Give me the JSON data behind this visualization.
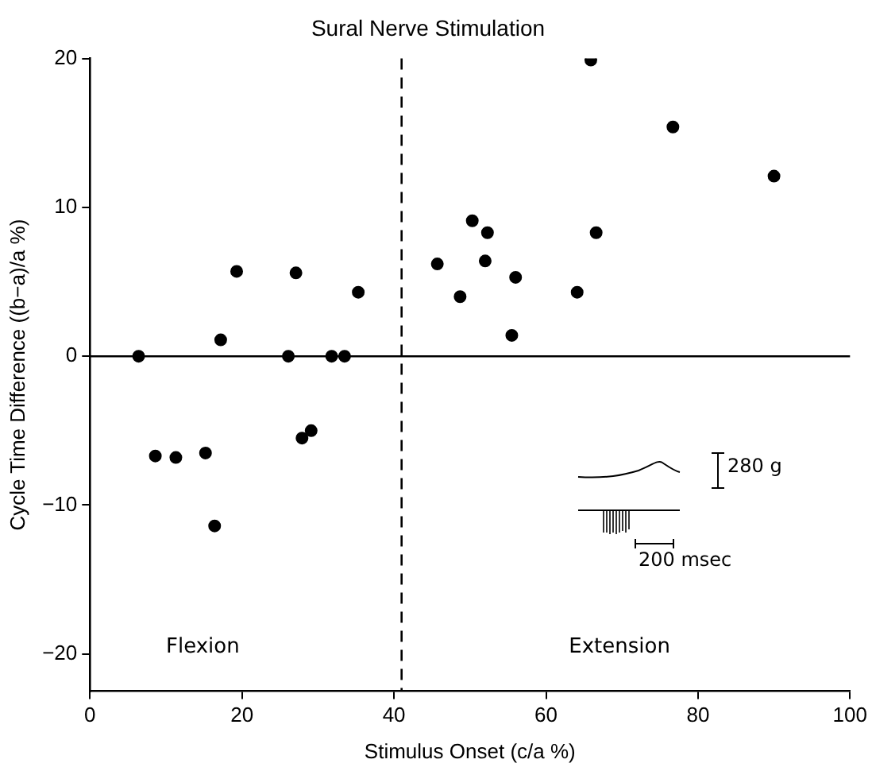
{
  "chart_data": {
    "type": "scatter",
    "title": "Sural Nerve Stimulation",
    "xlabel": "Stimulus Onset (c/a %)",
    "ylabel": "Cycle Time Difference ((b−a)/a %)",
    "annotations": [
      "Flexion",
      "Extension",
      "280 g",
      "200 msec"
    ],
    "x": [
      6.4,
      8.6,
      11.3,
      15.2,
      16.4,
      17.2,
      19.3,
      26.1,
      27.1,
      27.9,
      29.1,
      31.8,
      33.5,
      35.3,
      45.7,
      48.7,
      50.3,
      52.0,
      52.3,
      55.5,
      56.0,
      64.1,
      65.9,
      66.6,
      76.7,
      90.0
    ],
    "values": [
      0,
      -6.7,
      -6.8,
      -6.5,
      -11.4,
      1.1,
      5.7,
      0,
      5.6,
      -5.5,
      -5.0,
      0,
      0,
      4.3,
      6.2,
      4.0,
      9.1,
      6.4,
      8.3,
      1.4,
      5.3,
      4.3,
      19.9,
      8.3,
      15.4,
      12.1
    ],
    "color": "#000000",
    "marker": "circle",
    "grid": false,
    "legend": false,
    "xlim": [
      0,
      100
    ],
    "xticks": [
      0,
      20,
      40,
      60,
      80,
      100
    ],
    "ylim": [
      -22.5,
      20
    ],
    "yticks": [
      {
        "value": -20,
        "label": "−20"
      },
      {
        "value": -10,
        "label": "−10"
      },
      0,
      10,
      20
    ],
    "ref_lines": [
      {
        "axis": "y",
        "value": 0,
        "line_style": "solid",
        "color": "#000000"
      },
      {
        "axis": "x",
        "value": 41,
        "line_style": "dashed",
        "color": "#000000"
      }
    ]
  }
}
